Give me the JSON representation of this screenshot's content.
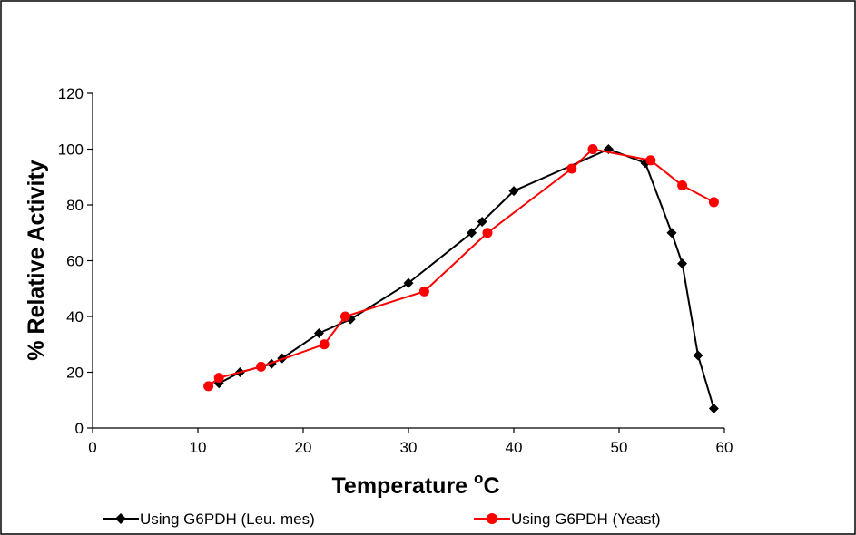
{
  "chart_data": {
    "type": "line",
    "title": "",
    "xlabel": "Temperature",
    "xlabel_unit": "oC",
    "ylabel": "% Relative Activity",
    "xlim": [
      0,
      60
    ],
    "ylim": [
      0,
      120
    ],
    "x_ticks": [
      0,
      10,
      20,
      30,
      40,
      50,
      60
    ],
    "y_ticks": [
      0,
      20,
      40,
      60,
      80,
      100,
      120
    ],
    "grid": false,
    "legend_position": "bottom",
    "series": [
      {
        "name": "Using G6PDH (Leu. mes)",
        "color": "#000000",
        "marker": "diamond",
        "points": [
          [
            12,
            16
          ],
          [
            14,
            20
          ],
          [
            17,
            23
          ],
          [
            18,
            25
          ],
          [
            21.5,
            34
          ],
          [
            24.5,
            39
          ],
          [
            30,
            52
          ],
          [
            36,
            70
          ],
          [
            37,
            74
          ],
          [
            40,
            85
          ],
          [
            49,
            100
          ],
          [
            52.5,
            95
          ],
          [
            55,
            70
          ],
          [
            56,
            59
          ],
          [
            57.5,
            26
          ],
          [
            59,
            7
          ]
        ]
      },
      {
        "name": "Using G6PDH (Yeast)",
        "color": "#ff0000",
        "marker": "circle",
        "points": [
          [
            11,
            15
          ],
          [
            12,
            18
          ],
          [
            16,
            22
          ],
          [
            22,
            30
          ],
          [
            24,
            40
          ],
          [
            31.5,
            49
          ],
          [
            37.5,
            70
          ],
          [
            45.5,
            93
          ],
          [
            47.5,
            100
          ],
          [
            53,
            96
          ],
          [
            56,
            87
          ],
          [
            59,
            81
          ]
        ]
      }
    ]
  }
}
